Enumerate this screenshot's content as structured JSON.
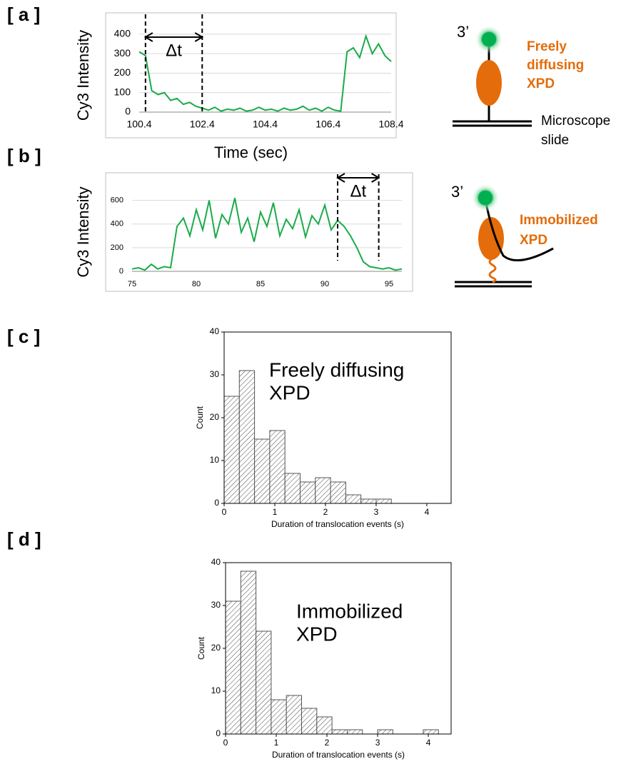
{
  "panel_labels": [
    "[ a ]",
    "[ b ]",
    "[ c ]",
    "[ d ]"
  ],
  "diagrams": {
    "freely": {
      "prime": "3’",
      "label": [
        "Freely",
        "diffusing",
        "XPD"
      ],
      "slide": [
        "Microscope",
        "slide"
      ]
    },
    "immobilized": {
      "prime": "3’",
      "label": [
        "Immobilized",
        "XPD"
      ]
    }
  },
  "chart_data": [
    {
      "type": "line",
      "y_label": "Cy3 Intensity",
      "x_label": "Time (sec)",
      "color": "#1aab4a",
      "grid": true,
      "x": [
        100.4,
        100.6,
        100.8,
        101.0,
        101.2,
        101.4,
        101.6,
        101.8,
        102.0,
        102.2,
        102.4,
        102.6,
        102.8,
        103.0,
        103.2,
        103.4,
        103.6,
        103.8,
        104.0,
        104.2,
        104.4,
        104.6,
        104.8,
        105.0,
        105.2,
        105.4,
        105.6,
        105.8,
        106.0,
        106.2,
        106.4,
        106.6,
        106.8,
        107.0,
        107.2,
        107.4,
        107.6,
        107.8,
        108.0,
        108.2,
        108.4
      ],
      "values": [
        310,
        290,
        110,
        90,
        100,
        60,
        70,
        40,
        50,
        30,
        20,
        10,
        25,
        5,
        15,
        10,
        20,
        5,
        10,
        25,
        10,
        15,
        5,
        20,
        10,
        15,
        30,
        10,
        20,
        5,
        25,
        10,
        5,
        310,
        330,
        280,
        390,
        300,
        350,
        290,
        260
      ],
      "xlim": [
        100.4,
        108.4
      ],
      "ylim": [
        0,
        440
      ],
      "xticks": [
        100.4,
        102.4,
        104.4,
        106.4,
        108.4
      ],
      "yticks": [
        0,
        100,
        200,
        300,
        400
      ],
      "markers": [
        100.6,
        102.4
      ],
      "annotation": "Δt"
    },
    {
      "type": "line",
      "y_label": "Cy3 Intensity",
      "color": "#1aab4a",
      "grid": true,
      "x": [
        75,
        75.5,
        76,
        76.5,
        77,
        77.5,
        78,
        78.5,
        79,
        79.5,
        80,
        80.5,
        81,
        81.5,
        82,
        82.5,
        83,
        83.5,
        84,
        84.5,
        85,
        85.5,
        86,
        86.5,
        87,
        87.5,
        88,
        88.5,
        89,
        89.5,
        90,
        90.5,
        91,
        91.5,
        92,
        92.5,
        93,
        93.5,
        94,
        94.5,
        95,
        95.5,
        96
      ],
      "values": [
        20,
        30,
        10,
        60,
        20,
        40,
        30,
        380,
        450,
        300,
        520,
        350,
        600,
        280,
        480,
        400,
        620,
        330,
        450,
        250,
        500,
        380,
        580,
        300,
        440,
        360,
        520,
        290,
        470,
        400,
        560,
        350,
        430,
        380,
        300,
        200,
        80,
        40,
        30,
        20,
        30,
        10,
        20
      ],
      "xlim": [
        75,
        96
      ],
      "ylim": [
        0,
        700
      ],
      "xticks": [
        75,
        80,
        85,
        90,
        95
      ],
      "yticks": [
        0,
        200,
        400,
        600
      ],
      "markers": [
        91,
        94.2
      ],
      "annotation": "Δt"
    },
    {
      "type": "histogram",
      "y_label": "Count",
      "x_label": "Duration of translocation events (s)",
      "bins": [
        0,
        0.3,
        0.6,
        0.9,
        1.2,
        1.5,
        1.8,
        2.1,
        2.4,
        2.7,
        3.0,
        3.3
      ],
      "values": [
        25,
        31,
        15,
        17,
        7,
        5,
        6,
        5,
        2,
        1,
        1
      ],
      "xlim": [
        0,
        4.48
      ],
      "ylim": [
        0,
        40
      ],
      "xticks": [
        0,
        1,
        2,
        3,
        4
      ],
      "yticks": [
        0,
        10,
        20,
        30,
        40
      ],
      "annotation": [
        "Freely diffusing",
        "XPD"
      ]
    },
    {
      "type": "histogram",
      "y_label": "Count",
      "x_label": "Duration of translocation events (s)",
      "bins": [
        0,
        0.3,
        0.6,
        0.9,
        1.2,
        1.5,
        1.8,
        2.1,
        2.4,
        2.7,
        3.0,
        3.3,
        3.6,
        3.9,
        4.2
      ],
      "values": [
        31,
        38,
        24,
        8,
        9,
        6,
        4,
        1,
        1,
        0,
        1,
        0,
        0,
        1
      ],
      "xlim": [
        0,
        4.45
      ],
      "ylim": [
        0,
        40
      ],
      "xticks": [
        0,
        1,
        2,
        3,
        4
      ],
      "yticks": [
        0,
        10,
        20,
        30,
        40
      ],
      "annotation": [
        "Immobilized",
        "XPD"
      ]
    }
  ]
}
